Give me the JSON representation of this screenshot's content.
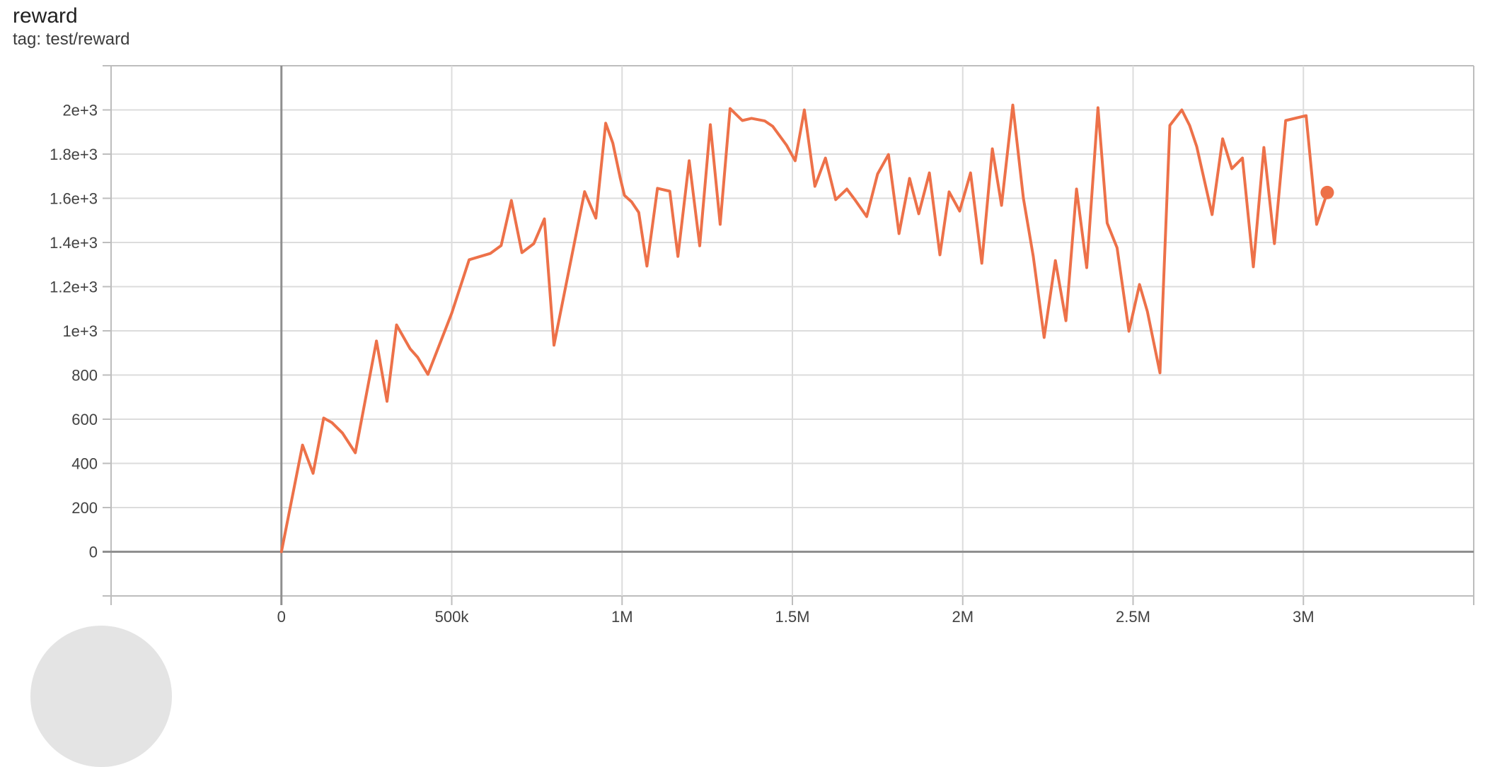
{
  "header": {
    "title": "reward",
    "subtitle": "tag: test/reward"
  },
  "chart_data": {
    "type": "line",
    "title": "reward",
    "tag": "test/reward",
    "grid": true,
    "legend_position": "none",
    "x_domain": [
      -500000,
      3500000
    ],
    "y_domain": [
      -200,
      2200
    ],
    "x_axis": {
      "gridlines": [
        -500000,
        0,
        500000,
        1000000,
        1500000,
        2000000,
        2500000,
        3000000,
        3500000
      ],
      "ticks": [
        {
          "value": 0,
          "label": "0"
        },
        {
          "value": 500000,
          "label": "500k"
        },
        {
          "value": 1000000,
          "label": "1M"
        },
        {
          "value": 1500000,
          "label": "1.5M"
        },
        {
          "value": 2000000,
          "label": "2M"
        },
        {
          "value": 2500000,
          "label": "2.5M"
        },
        {
          "value": 3000000,
          "label": "3M"
        }
      ]
    },
    "y_axis": {
      "gridlines": [
        -200,
        0,
        200,
        400,
        600,
        800,
        1000,
        1200,
        1400,
        1600,
        1800,
        2000,
        2200
      ],
      "ticks": [
        {
          "value": 0,
          "label": "0"
        },
        {
          "value": 200,
          "label": "200"
        },
        {
          "value": 400,
          "label": "400"
        },
        {
          "value": 600,
          "label": "600"
        },
        {
          "value": 800,
          "label": "800"
        },
        {
          "value": 1000,
          "label": "1e+3"
        },
        {
          "value": 1200,
          "label": "1.2e+3"
        },
        {
          "value": 1400,
          "label": "1.4e+3"
        },
        {
          "value": 1600,
          "label": "1.6e+3"
        },
        {
          "value": 1800,
          "label": "1.8e+3"
        },
        {
          "value": 2000,
          "label": "2e+3"
        }
      ]
    },
    "zero_lines": {
      "x": 0,
      "y": 0
    },
    "series": [
      {
        "name": "test/reward",
        "color": "#ed7149",
        "end_marker": {
          "step": 3070000,
          "value": 1626
        },
        "points": [
          [
            0,
            0
          ],
          [
            62000,
            483
          ],
          [
            93000,
            355
          ],
          [
            124000,
            605
          ],
          [
            148000,
            585
          ],
          [
            179000,
            538
          ],
          [
            217000,
            448
          ],
          [
            279000,
            954
          ],
          [
            310000,
            681
          ],
          [
            338000,
            1027
          ],
          [
            378000,
            918
          ],
          [
            400000,
            880
          ],
          [
            430000,
            803
          ],
          [
            500000,
            1080
          ],
          [
            551000,
            1322
          ],
          [
            613000,
            1350
          ],
          [
            645000,
            1386
          ],
          [
            675000,
            1590
          ],
          [
            706000,
            1354
          ],
          [
            741000,
            1395
          ],
          [
            772000,
            1507
          ],
          [
            800000,
            935
          ],
          [
            890000,
            1630
          ],
          [
            923000,
            1510
          ],
          [
            952000,
            1940
          ],
          [
            973000,
            1850
          ],
          [
            995000,
            1690
          ],
          [
            1007000,
            1613
          ],
          [
            1028000,
            1584
          ],
          [
            1049000,
            1536
          ],
          [
            1073000,
            1293
          ],
          [
            1104000,
            1645
          ],
          [
            1140000,
            1632
          ],
          [
            1164000,
            1337
          ],
          [
            1197000,
            1770
          ],
          [
            1228000,
            1385
          ],
          [
            1259000,
            1933
          ],
          [
            1288000,
            1482
          ],
          [
            1317000,
            2006
          ],
          [
            1353000,
            1952
          ],
          [
            1380000,
            1962
          ],
          [
            1419000,
            1950
          ],
          [
            1442000,
            1926
          ],
          [
            1483000,
            1840
          ],
          [
            1508000,
            1770
          ],
          [
            1535000,
            2000
          ],
          [
            1566000,
            1654
          ],
          [
            1597000,
            1782
          ],
          [
            1627000,
            1594
          ],
          [
            1660000,
            1642
          ],
          [
            1685000,
            1590
          ],
          [
            1718000,
            1517
          ],
          [
            1750000,
            1710
          ],
          [
            1782000,
            1798
          ],
          [
            1813000,
            1440
          ],
          [
            1844000,
            1690
          ],
          [
            1871000,
            1530
          ],
          [
            1902000,
            1715
          ],
          [
            1933000,
            1344
          ],
          [
            1960000,
            1629
          ],
          [
            1991000,
            1542
          ],
          [
            2023000,
            1715
          ],
          [
            2056000,
            1306
          ],
          [
            2087000,
            1824
          ],
          [
            2114000,
            1568
          ],
          [
            2147000,
            2022
          ],
          [
            2178000,
            1600
          ],
          [
            2207000,
            1338
          ],
          [
            2239000,
            970
          ],
          [
            2272000,
            1318
          ],
          [
            2303000,
            1046
          ],
          [
            2334000,
            1642
          ],
          [
            2364000,
            1286
          ],
          [
            2397000,
            2010
          ],
          [
            2424000,
            1488
          ],
          [
            2453000,
            1376
          ],
          [
            2488000,
            998
          ],
          [
            2519000,
            1210
          ],
          [
            2542000,
            1088
          ],
          [
            2579000,
            810
          ],
          [
            2608000,
            1930
          ],
          [
            2643000,
            2000
          ],
          [
            2666000,
            1930
          ],
          [
            2687000,
            1834
          ],
          [
            2732000,
            1526
          ],
          [
            2763000,
            1869
          ],
          [
            2790000,
            1734
          ],
          [
            2821000,
            1782
          ],
          [
            2853000,
            1290
          ],
          [
            2884000,
            1830
          ],
          [
            2915000,
            1395
          ],
          [
            2948000,
            1952
          ],
          [
            3008000,
            1974
          ],
          [
            3039000,
            1482
          ],
          [
            3070000,
            1626
          ]
        ]
      }
    ],
    "colors": {
      "gridline": "#dcdcdc",
      "axis_border": "#bdbdbd",
      "zero_line": "#8f8f8f",
      "tick_label": "#424242",
      "series_orange": "#ed7149"
    }
  }
}
